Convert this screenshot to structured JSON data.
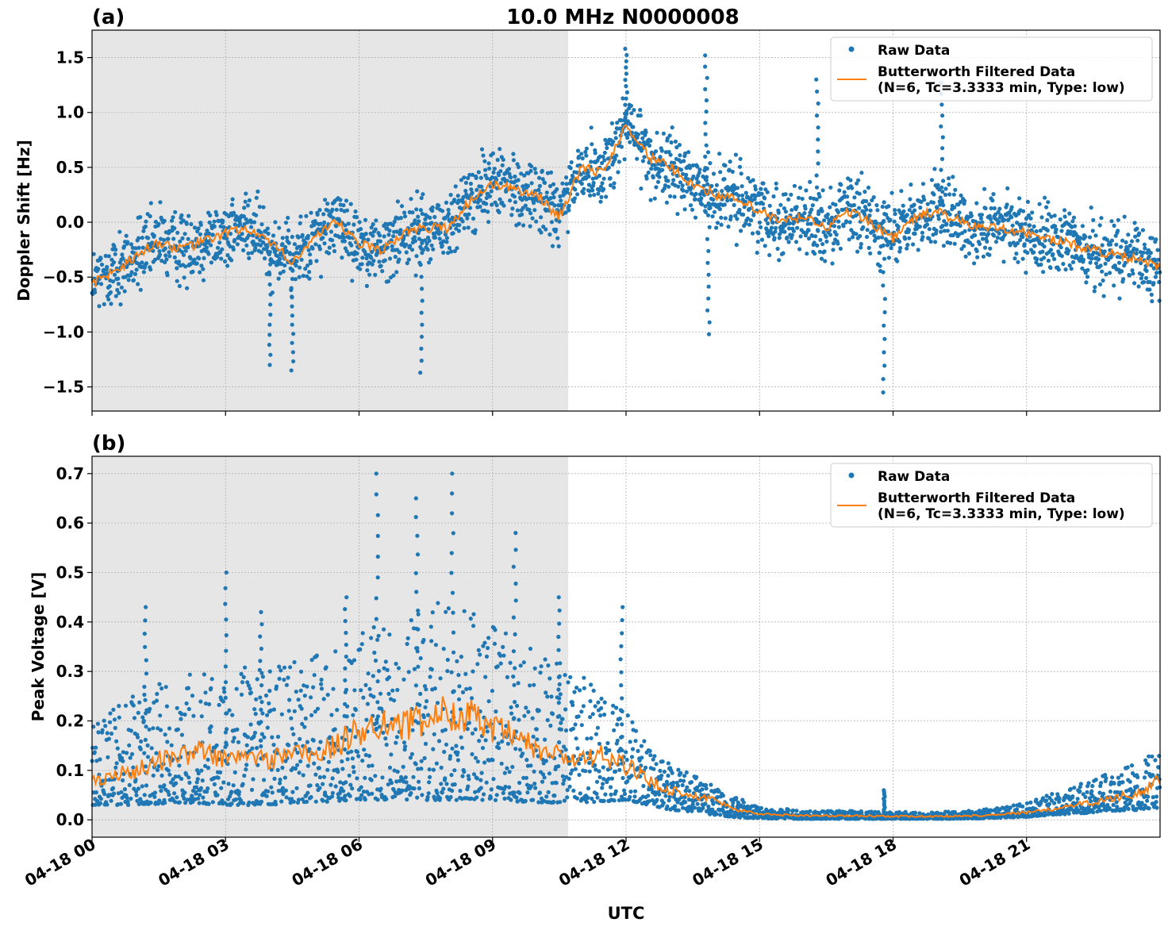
{
  "figure": {
    "suptitle": "10.0 MHz N0000008",
    "xlabel": "UTC",
    "x_tick_labels": [
      "04-18 00",
      "04-18 03",
      "04-18 06",
      "04-18 09",
      "04-18 12",
      "04-18 15",
      "04-18 18",
      "04-18 21"
    ],
    "colors": {
      "raw": "#1f77b4",
      "filtered": "#ff7f0e",
      "night_shade": "#e6e6e6",
      "grid": "#b0b0b0"
    }
  },
  "chart_data": [
    {
      "type": "scatter",
      "panel_label": "(a)",
      "ylabel": "Doppler Shift [Hz]",
      "xlim_hours": [
        0,
        24
      ],
      "ylim": [
        -1.72,
        1.75
      ],
      "yticks": [
        1.5,
        1.0,
        0.5,
        0.0,
        -0.5,
        -1.0,
        -1.5
      ],
      "ytick_labels": [
        "1.5",
        "1.0",
        "0.5",
        "0.0",
        "−0.5",
        "−1.0",
        "−1.5"
      ],
      "grid": true,
      "legend_position": "top-right",
      "night_shading_hours": [
        0,
        10.7
      ],
      "series": [
        {
          "name": "Raw Data",
          "marker": "dot",
          "spread_hz": 0.28
        },
        {
          "name": "Butterworth Filtered Data\n(N=6, Tc=3.3333 min, Type: low)",
          "marker": "line"
        }
      ],
      "filtered_trend": {
        "x": [
          0,
          0.5,
          1,
          1.5,
          2,
          2.5,
          3,
          3.5,
          4,
          4.5,
          5,
          5.5,
          6,
          6.5,
          7,
          7.5,
          8,
          8.5,
          9,
          9.5,
          10,
          10.5,
          11,
          11.5,
          12,
          12.5,
          13,
          13.5,
          14,
          14.5,
          15,
          15.5,
          16,
          16.5,
          17,
          17.5,
          18,
          18.5,
          19,
          19.5,
          20,
          20.5,
          21,
          21.5,
          22,
          22.5,
          23,
          23.5,
          24
        ],
        "y": [
          -0.55,
          -0.45,
          -0.3,
          -0.18,
          -0.25,
          -0.18,
          -0.1,
          -0.05,
          -0.2,
          -0.35,
          -0.15,
          0.0,
          -0.2,
          -0.25,
          -0.1,
          -0.05,
          -0.05,
          0.2,
          0.35,
          0.3,
          0.25,
          0.05,
          0.5,
          0.45,
          0.9,
          0.6,
          0.5,
          0.35,
          0.25,
          0.2,
          0.1,
          0.0,
          0.05,
          -0.05,
          0.1,
          0.0,
          -0.15,
          0.05,
          0.1,
          0.0,
          -0.05,
          -0.05,
          -0.1,
          -0.15,
          -0.2,
          -0.25,
          -0.3,
          -0.35,
          -0.4
        ]
      },
      "spikes": [
        {
          "x": 4.0,
          "y": -1.3
        },
        {
          "x": 4.5,
          "y": -1.35
        },
        {
          "x": 7.4,
          "y": -1.37
        },
        {
          "x": 12.0,
          "y": 1.58
        },
        {
          "x": 13.8,
          "y": 1.52
        },
        {
          "x": 13.85,
          "y": -1.02
        },
        {
          "x": 17.8,
          "y": -1.55
        },
        {
          "x": 19.1,
          "y": 1.27
        },
        {
          "x": 16.3,
          "y": 1.3
        }
      ]
    },
    {
      "type": "scatter",
      "panel_label": "(b)",
      "ylabel": "Peak Voltage [V]",
      "xlim_hours": [
        0,
        24
      ],
      "ylim": [
        -0.035,
        0.735
      ],
      "yticks": [
        0.7,
        0.6,
        0.5,
        0.4,
        0.3,
        0.2,
        0.1,
        0.0
      ],
      "ytick_labels": [
        "0.7",
        "0.6",
        "0.5",
        "0.4",
        "0.3",
        "0.2",
        "0.1",
        "0.0"
      ],
      "grid": true,
      "legend_position": "top-right",
      "night_shading_hours": [
        0,
        10.7
      ],
      "series": [
        {
          "name": "Raw Data",
          "marker": "dot"
        },
        {
          "name": "Butterworth Filtered Data\n(N=6, Tc=3.3333 min, Type: low)",
          "marker": "line"
        }
      ],
      "filtered_trend": {
        "x": [
          0,
          0.5,
          1,
          1.5,
          2,
          2.5,
          3,
          3.5,
          4,
          4.5,
          5,
          5.5,
          6,
          6.5,
          7,
          7.5,
          8,
          8.5,
          9,
          9.5,
          10,
          10.5,
          11,
          11.5,
          12,
          12.5,
          13,
          13.5,
          14,
          14.5,
          15,
          15.5,
          16,
          16.5,
          17,
          17.5,
          18,
          18.5,
          19,
          19.5,
          20,
          20.5,
          21,
          21.5,
          22,
          22.5,
          23,
          23.5,
          24
        ],
        "y": [
          0.08,
          0.09,
          0.1,
          0.12,
          0.13,
          0.14,
          0.12,
          0.13,
          0.12,
          0.14,
          0.13,
          0.15,
          0.18,
          0.2,
          0.19,
          0.2,
          0.22,
          0.21,
          0.18,
          0.17,
          0.14,
          0.13,
          0.12,
          0.13,
          0.11,
          0.08,
          0.06,
          0.05,
          0.04,
          0.02,
          0.012,
          0.01,
          0.009,
          0.008,
          0.008,
          0.008,
          0.007,
          0.007,
          0.007,
          0.008,
          0.009,
          0.012,
          0.015,
          0.02,
          0.03,
          0.035,
          0.045,
          0.055,
          0.08
        ]
      },
      "spread": {
        "x": [
          0,
          1,
          2,
          3,
          4,
          5,
          6,
          7,
          8,
          9,
          10,
          11,
          12,
          12.5,
          13,
          13.5,
          14,
          14.5,
          15,
          16,
          17,
          18,
          19,
          20,
          21,
          21.5,
          22,
          22.5,
          23,
          23.5,
          24
        ],
        "upper": [
          0.2,
          0.26,
          0.3,
          0.3,
          0.32,
          0.33,
          0.38,
          0.42,
          0.45,
          0.4,
          0.34,
          0.3,
          0.22,
          0.16,
          0.12,
          0.09,
          0.07,
          0.045,
          0.025,
          0.02,
          0.018,
          0.016,
          0.016,
          0.02,
          0.035,
          0.05,
          0.07,
          0.085,
          0.1,
          0.12,
          0.14
        ],
        "lower": [
          0.03,
          0.03,
          0.035,
          0.03,
          0.03,
          0.035,
          0.04,
          0.04,
          0.04,
          0.04,
          0.035,
          0.035,
          0.04,
          0.03,
          0.02,
          0.015,
          0.01,
          0.005,
          0.003,
          0.002,
          0.002,
          0.002,
          0.002,
          0.003,
          0.006,
          0.01,
          0.012,
          0.015,
          0.018,
          0.02,
          0.025
        ]
      },
      "spikes": [
        {
          "x": 1.2,
          "y": 0.43
        },
        {
          "x": 3.0,
          "y": 0.5
        },
        {
          "x": 3.8,
          "y": 0.42
        },
        {
          "x": 5.7,
          "y": 0.45
        },
        {
          "x": 6.4,
          "y": 0.7
        },
        {
          "x": 7.3,
          "y": 0.65
        },
        {
          "x": 8.1,
          "y": 0.7
        },
        {
          "x": 9.5,
          "y": 0.58
        },
        {
          "x": 10.5,
          "y": 0.45
        },
        {
          "x": 11.9,
          "y": 0.43
        },
        {
          "x": 17.8,
          "y": 0.06
        }
      ]
    }
  ]
}
